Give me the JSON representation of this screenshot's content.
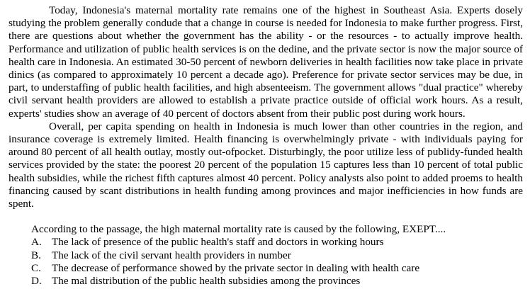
{
  "passage": {
    "paragraphs": [
      "Today, Indonesia's maternal mortality rate remains one of the highest in Southeast Asia. Experts dosely studying the problem generally condude that a change in course is needed for Indonesia to make further progress. First, there are questions about whether the government has the ability - or the resources - to actually improve health. Performance and utilization of public health services is on the dedine, and the private sector is now the major source of health care in Indonesia. An estimated 30-50 percent of newborn deliveries in health facilities now take place in private dinics (as compared to approximately 10 percent a decade ago). Preference for private sector services may be due, in part, to understaffing of public health facilities, and high absenteeism. The government allows \"dual practice\" whereby civil servant health providers are allowed to establish a private practice outside of official work hours. As a result, experts' studies show an average of 40 percent of doctors absent from their public post during work hours.",
      "Overall, per capita spending on health in Indonesia is much lower than other countries in the region, and insurance coverage is extremely limited. Health financing is overwhelmingly private - with individuals paying for around 80 percent of all health outlay, mostly out-ofpocket. Disturbingly, the poor utilize less of publidy-funded health services provided by the state: the poorest 20 percent of the population 15 captures less than 10 percent of total public health subsidies, while the richest fifth captures almost 40 percent. Policy analysts also point to added proems to health financing caused by scant distributions in health funding among provinces and major inefficiencies in how funds are spent."
    ]
  },
  "question": {
    "stem": "According to the passage, the high maternal mortality rate is caused by the following, EXEPT....",
    "options": [
      {
        "letter": "A.",
        "text": "The lack of presence of the public health's staff and doctors in working hours"
      },
      {
        "letter": "B.",
        "text": "The lack of the civil servant health providers in number"
      },
      {
        "letter": "C.",
        "text": "The decrease of performance showed by the private sector in dealing with health care"
      },
      {
        "letter": "D.",
        "text": "The mal distribution of the public health subsidies among the provinces"
      }
    ]
  }
}
